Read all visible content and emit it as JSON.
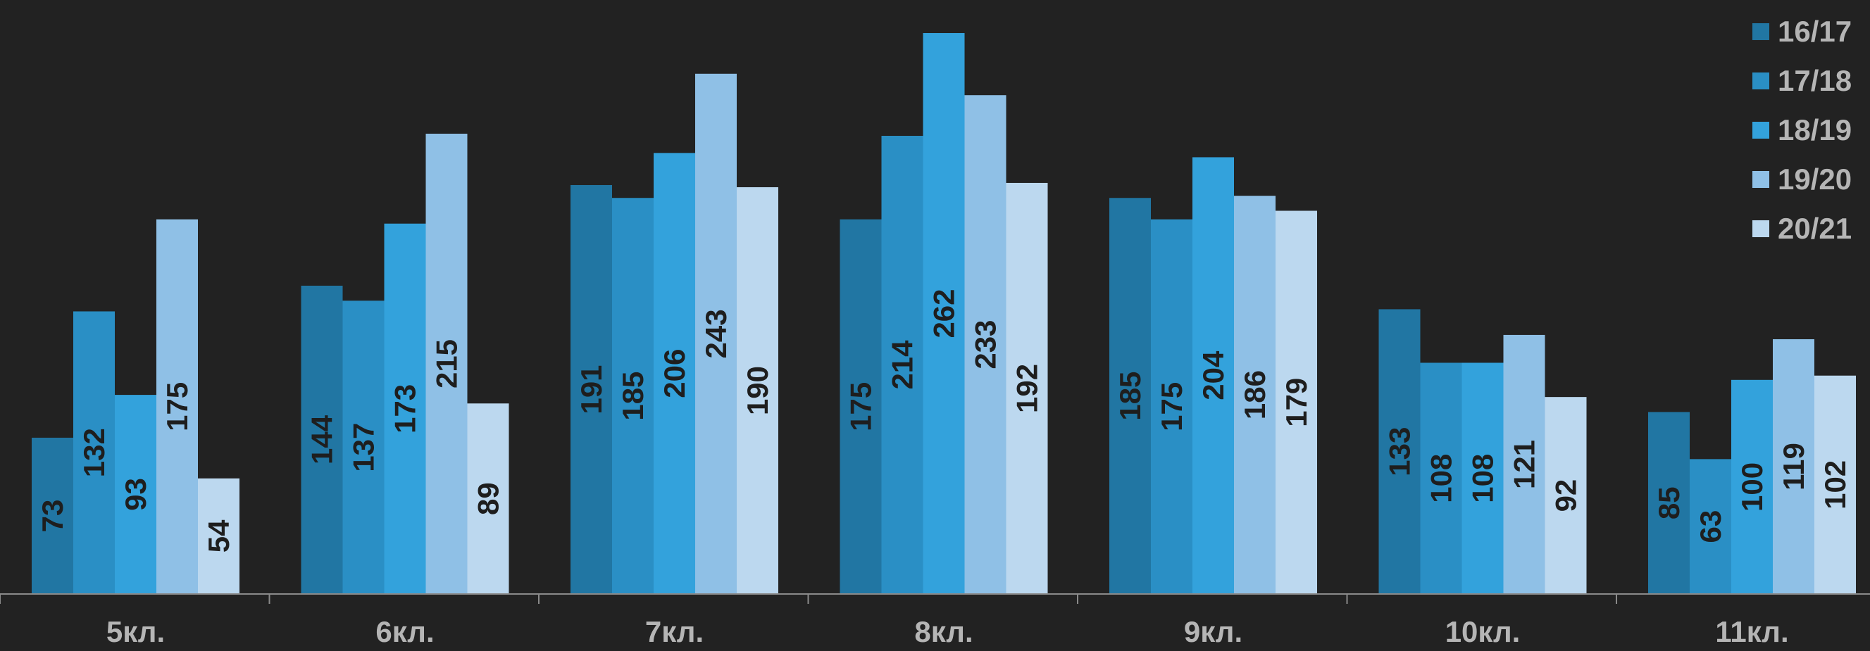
{
  "chart_data": {
    "type": "bar",
    "categories": [
      "5кл.",
      "6кл.",
      "7кл.",
      "8кл.",
      "9кл.",
      "10кл.",
      "11кл."
    ],
    "series": [
      {
        "name": "16/17",
        "color": "#2176a3",
        "values": [
          73,
          144,
          191,
          175,
          185,
          133,
          85
        ]
      },
      {
        "name": "17/18",
        "color": "#2a8fc5",
        "values": [
          132,
          137,
          185,
          214,
          175,
          108,
          63
        ]
      },
      {
        "name": "18/19",
        "color": "#33a2dc",
        "values": [
          93,
          173,
          206,
          262,
          204,
          108,
          100
        ]
      },
      {
        "name": "19/20",
        "color": "#8fc0e6",
        "values": [
          175,
          215,
          243,
          233,
          186,
          121,
          119
        ]
      },
      {
        "name": "20/21",
        "color": "#bcd8ef",
        "values": [
          54,
          89,
          190,
          192,
          179,
          92,
          102
        ]
      }
    ],
    "ylim": [
      0,
      262
    ],
    "grid": false,
    "legend_position": "top-right",
    "data_labels": true
  }
}
